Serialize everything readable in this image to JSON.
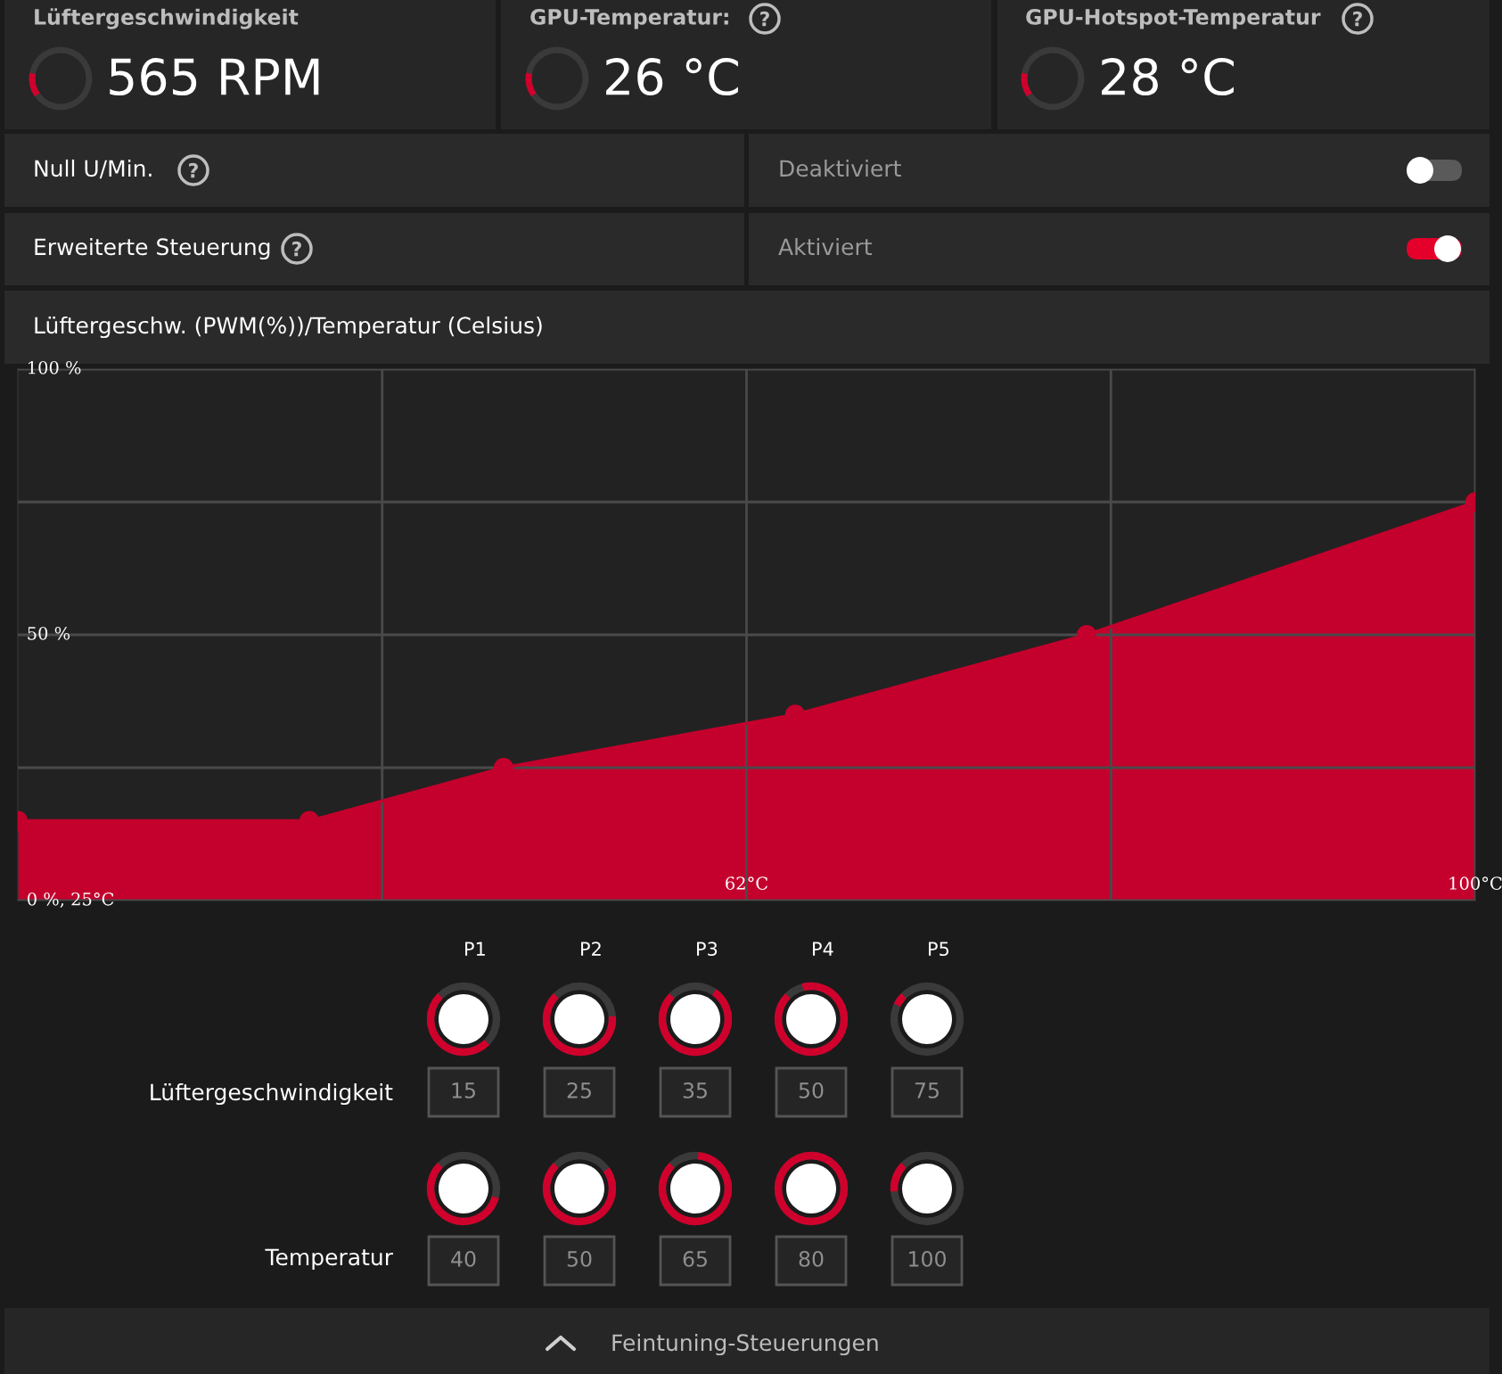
{
  "chart_data": {
    "type": "area",
    "title": "Lüftergeschw. (PWM(%))/Temperatur (Celsius)",
    "x": [
      25,
      40,
      50,
      65,
      80,
      100
    ],
    "series": [
      {
        "color": "#c4002c",
        "values": [
          15,
          15,
          25,
          35,
          50,
          75
        ]
      }
    ],
    "xlim": [
      25,
      100
    ],
    "ylim": [
      0,
      100
    ],
    "xticks": [
      {
        "value": 43.75,
        "label": null
      },
      {
        "value": 62.5,
        "label": "62°C"
      },
      {
        "value": 81.25,
        "label": null
      },
      {
        "value": 100,
        "label": "100°C"
      }
    ],
    "yticks": [
      {
        "value": 0,
        "label": "0 %, 25°C"
      },
      {
        "value": 25,
        "label": null
      },
      {
        "value": 50,
        "label": "50 %"
      },
      {
        "value": 75,
        "label": null
      },
      {
        "value": 100,
        "label": "100 %"
      }
    ],
    "grid": true,
    "legend": false,
    "marker": "circle",
    "line_style": "solid",
    "annotations": [
      "Lüftergeschwindigkeit",
      "565 RPM",
      "GPU-Temperatur:",
      "26 °C",
      "GPU-Hotspot-Temperatur",
      "28 °C",
      "Null U/Min.",
      "Deaktiviert",
      "Erweiterte Steuerung",
      "Aktiviert",
      "P1",
      "P2",
      "P3",
      "P4",
      "P5",
      "Lüftergeschwindigkeit",
      "15",
      "25",
      "35",
      "50",
      "75",
      "Temperatur",
      "40",
      "50",
      "65",
      "80",
      "100",
      "Feintuning-Steuerungen"
    ]
  }
}
